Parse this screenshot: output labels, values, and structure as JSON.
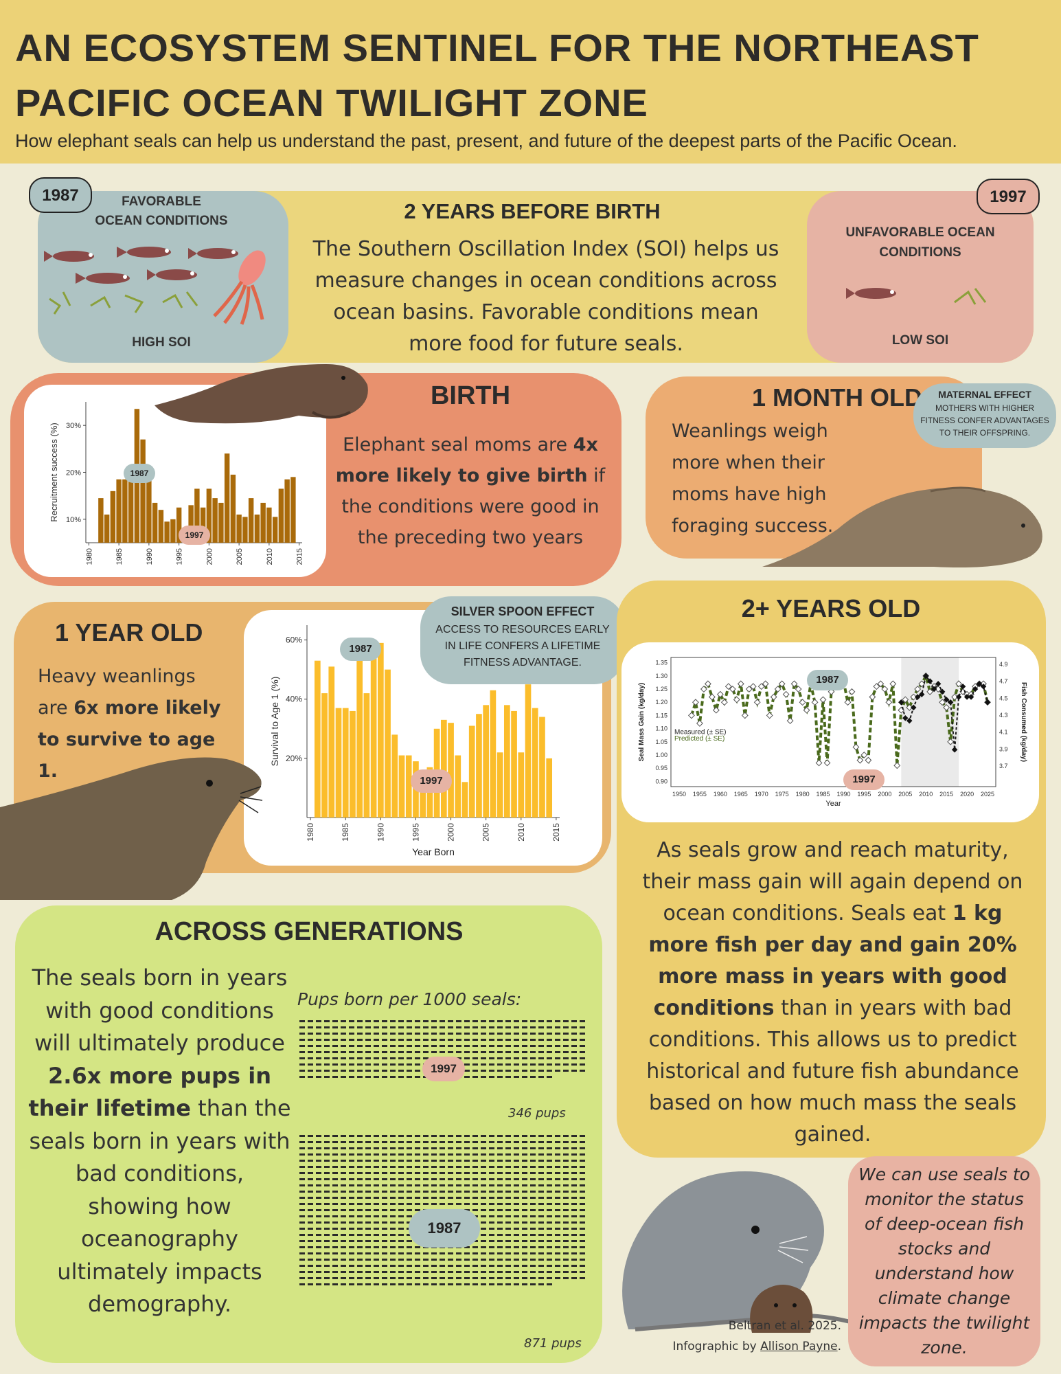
{
  "header": {
    "title": "AN ECOSYSTEM SENTINEL FOR THE NORTHEAST PACIFIC OCEAN TWILIGHT ZONE",
    "subtitle": "How elephant seals can help us understand the past, present, and future of the deepest parts of the Pacific Ocean."
  },
  "soi": {
    "year_good": "1987",
    "year_bad": "1997",
    "favorable_label_1": "FAVORABLE",
    "favorable_label_2": "OCEAN CONDITIONS",
    "high_soi": "HIGH SOI",
    "unfavorable_label_1": "UNFAVORABLE OCEAN",
    "unfavorable_label_2": "CONDITIONS",
    "low_soi": "LOW SOI",
    "heading": "2 YEARS BEFORE BIRTH",
    "body": "The Southern Oscillation Index (SOI) helps us measure changes in ocean conditions across ocean basins. Favorable conditions mean more food for future seals."
  },
  "birth": {
    "heading": "BIRTH",
    "body_1": "Elephant seal moms are ",
    "body_bold": "4x more likely to give birth",
    "body_2": " if the conditions were good in the preceding two years"
  },
  "month": {
    "heading": "1 MONTH OLD",
    "body": "Weanlings weigh more when their moms have high foraging success.",
    "bubble_title": "MATERNAL EFFECT",
    "bubble_body": "MOTHERS WITH HIGHER FITNESS CONFER ADVANTAGES TO THEIR OFFSPRING."
  },
  "year1": {
    "heading": "1 YEAR OLD",
    "body_1": "Heavy weanlings are ",
    "body_bold": "6x more likely to survive to age 1.",
    "bubble_title": "SILVER SPOON  EFFECT",
    "bubble_body": "ACCESS TO RESOURCES EARLY IN LIFE CONFERS A LIFETIME FITNESS ADVANTAGE."
  },
  "twoplus": {
    "heading": "2+ YEARS OLD",
    "body_1": "As seals grow and reach maturity, their mass gain will again depend on ocean conditions. Seals eat ",
    "body_bold": "1 kg more fish per day and gain 20% more mass in years with good conditions",
    "body_2": " than in years with bad conditions. This allows us to predict historical and future fish abundance based on how much mass the seals gained."
  },
  "generations": {
    "heading": "ACROSS GENERATIONS",
    "body_1": "The seals born in years with good conditions will ultimately produce ",
    "body_bold": "2.6x more pups in their lifetime",
    "body_2": " than the seals born in years with bad conditions, showing how oceanography ultimately impacts demography.",
    "pups_title": "Pups born per 1000 seals:",
    "bad_count": "346 pups",
    "good_count": "871 pups",
    "bad_year": "1997",
    "good_year": "1987"
  },
  "monitor": {
    "text": "We can use seals to monitor the status of deep-ocean fish stocks and understand how climate change impacts the twilight zone."
  },
  "credits": {
    "line1": "Beltran et al. 2025.",
    "line2_prefix": "Infographic by ",
    "line2_name": "Allison Payne",
    "line2_suffix": "."
  },
  "chart_data": [
    {
      "type": "bar",
      "ylabel": "Recruitment success (%)",
      "xlabel": "",
      "x_ticks": [
        "1980",
        "1985",
        "1990",
        "1995",
        "2000",
        "2005",
        "2010",
        "2015"
      ],
      "y_ticks": [
        "10%",
        "20%",
        "30%"
      ],
      "ylim": [
        5,
        35
      ],
      "xlim": [
        1979.5,
        2015.5
      ],
      "x": [
        1982,
        1983,
        1984,
        1985,
        1986,
        1987,
        1988,
        1989,
        1990,
        1991,
        1992,
        1993,
        1994,
        1995,
        1996,
        1997,
        1998,
        1999,
        2000,
        2001,
        2002,
        2003,
        2004,
        2005,
        2006,
        2007,
        2008,
        2009,
        2010,
        2011,
        2012,
        2013,
        2014
      ],
      "values": [
        14.5,
        11,
        16,
        18.5,
        18.5,
        21.5,
        33.5,
        27,
        20,
        13.5,
        12,
        9.5,
        10,
        12.5,
        7,
        13,
        16.5,
        12.5,
        16.5,
        14.5,
        13.5,
        24,
        19.5,
        11,
        10.5,
        14.5,
        11,
        13.5,
        12.5,
        10.5,
        16.5,
        18.5,
        19
      ],
      "annotations": [
        "1987",
        "1997"
      ]
    },
    {
      "type": "bar",
      "ylabel": "Survival to Age 1 (%)",
      "xlabel": "Year Born",
      "x_ticks": [
        "1980",
        "1985",
        "1990",
        "1995",
        "2000",
        "2005",
        "2010",
        "2015"
      ],
      "y_ticks": [
        "20%",
        "40%",
        "60%"
      ],
      "ylim": [
        0,
        65
      ],
      "xlim": [
        1979.5,
        2015.5
      ],
      "x": [
        1981,
        1982,
        1983,
        1984,
        1985,
        1986,
        1987,
        1988,
        1989,
        1990,
        1991,
        1992,
        1993,
        1994,
        1995,
        1996,
        1997,
        1998,
        1999,
        2000,
        2001,
        2002,
        2003,
        2004,
        2005,
        2006,
        2007,
        2008,
        2009,
        2010,
        2011,
        2012,
        2013,
        2014
      ],
      "values": [
        53,
        42,
        51,
        37,
        37,
        36,
        58,
        42,
        56,
        59,
        50,
        28,
        21,
        21,
        19,
        13,
        17,
        30,
        33,
        32,
        21,
        12,
        31,
        35,
        38,
        43,
        22,
        38,
        36,
        22,
        45,
        37,
        34,
        20
      ],
      "annotations": [
        "1987",
        "1997"
      ]
    },
    {
      "type": "line",
      "ylabel": "Seal Mass Gain (kg/day)",
      "y2label": "Fish Consumed (kg/day)",
      "xlabel": "Year",
      "x_ticks": [
        "1950",
        "1955",
        "1960",
        "1965",
        "1970",
        "1975",
        "1980",
        "1985",
        "1990",
        "1995",
        "2000",
        "2005",
        "2010",
        "2015",
        "2020",
        "2025"
      ],
      "y_ticks": [
        "0.90",
        "0.95",
        "1.00",
        "1.05",
        "1.10",
        "1.15",
        "1.20",
        "1.25",
        "1.30",
        "1.35"
      ],
      "y2_ticks": [
        "3.7",
        "3.9",
        "4.1",
        "4.3",
        "4.5",
        "4.7",
        "4.9"
      ],
      "ylim": [
        0.88,
        1.37
      ],
      "xlim": [
        1948,
        2027
      ],
      "shaded_range": [
        2004,
        2018
      ],
      "legend": [
        "Measured (± SE)",
        "Predicted (± SE)"
      ],
      "series": [
        {
          "name": "Predicted (± SE)",
          "x": [
            1953,
            1954,
            1955,
            1956,
            1957,
            1958,
            1959,
            1960,
            1961,
            1962,
            1963,
            1964,
            1965,
            1966,
            1967,
            1968,
            1969,
            1970,
            1971,
            1972,
            1973,
            1974,
            1975,
            1976,
            1977,
            1978,
            1979,
            1980,
            1981,
            1982,
            1983,
            1984,
            1985,
            1986,
            1987,
            1988,
            1989,
            1990,
            1991,
            1992,
            1993,
            1994,
            1995,
            1996,
            1997,
            1998,
            1999,
            2000,
            2001,
            2002,
            2003,
            2004,
            2005,
            2006,
            2007,
            2008,
            2009,
            2010,
            2011,
            2012,
            2013,
            2014,
            2015,
            2016,
            2017,
            2018,
            2019,
            2020,
            2021,
            2022,
            2023,
            2024,
            2025
          ],
          "values": [
            1.15,
            1.2,
            1.12,
            1.25,
            1.27,
            1.22,
            1.17,
            1.23,
            1.2,
            1.26,
            1.25,
            1.21,
            1.27,
            1.15,
            1.25,
            1.26,
            1.2,
            1.26,
            1.27,
            1.15,
            1.22,
            1.25,
            1.27,
            1.23,
            1.13,
            1.27,
            1.25,
            1.2,
            1.17,
            1.27,
            1.2,
            0.97,
            1.21,
            0.97,
            1.24,
            1.26,
            1.27,
            1.28,
            1.2,
            1.24,
            1.03,
            0.98,
            1.0,
            0.98,
            1.22,
            1.26,
            1.27,
            1.25,
            1.2,
            1.27,
            0.96,
            1.17,
            1.21,
            1.18,
            1.22,
            1.25,
            1.27,
            1.3,
            1.24,
            1.26,
            1.25,
            1.2,
            1.18,
            1.05,
            1.22,
            1.27,
            1.24,
            1.23,
            1.23,
            1.26,
            1.27,
            1.27,
            1.2
          ]
        },
        {
          "name": "Measured (± SE)",
          "x": [
            2004,
            2005,
            2006,
            2007,
            2008,
            2009,
            2010,
            2011,
            2012,
            2013,
            2014,
            2015,
            2016,
            2017,
            2018,
            2019,
            2020,
            2021,
            2022,
            2023,
            2024,
            2025
          ],
          "values": [
            1.2,
            1.14,
            1.13,
            1.18,
            1.22,
            1.23,
            1.3,
            1.28,
            1.25,
            1.27,
            1.24,
            1.21,
            1.2,
            1.02,
            1.22,
            1.26,
            1.22,
            1.22,
            1.25,
            1.27,
            1.26,
            1.2
          ]
        }
      ],
      "annotations": [
        "1987",
        "1997"
      ]
    }
  ],
  "colors": {
    "header": "#ecd277",
    "good": "#aec3c3",
    "bad": "#e6b3a4",
    "birth_bar": "#a96a0a",
    "survival_bar": "#fbbd2b",
    "predicted": "#4a6a1c",
    "measured": "#1a1a1a"
  }
}
